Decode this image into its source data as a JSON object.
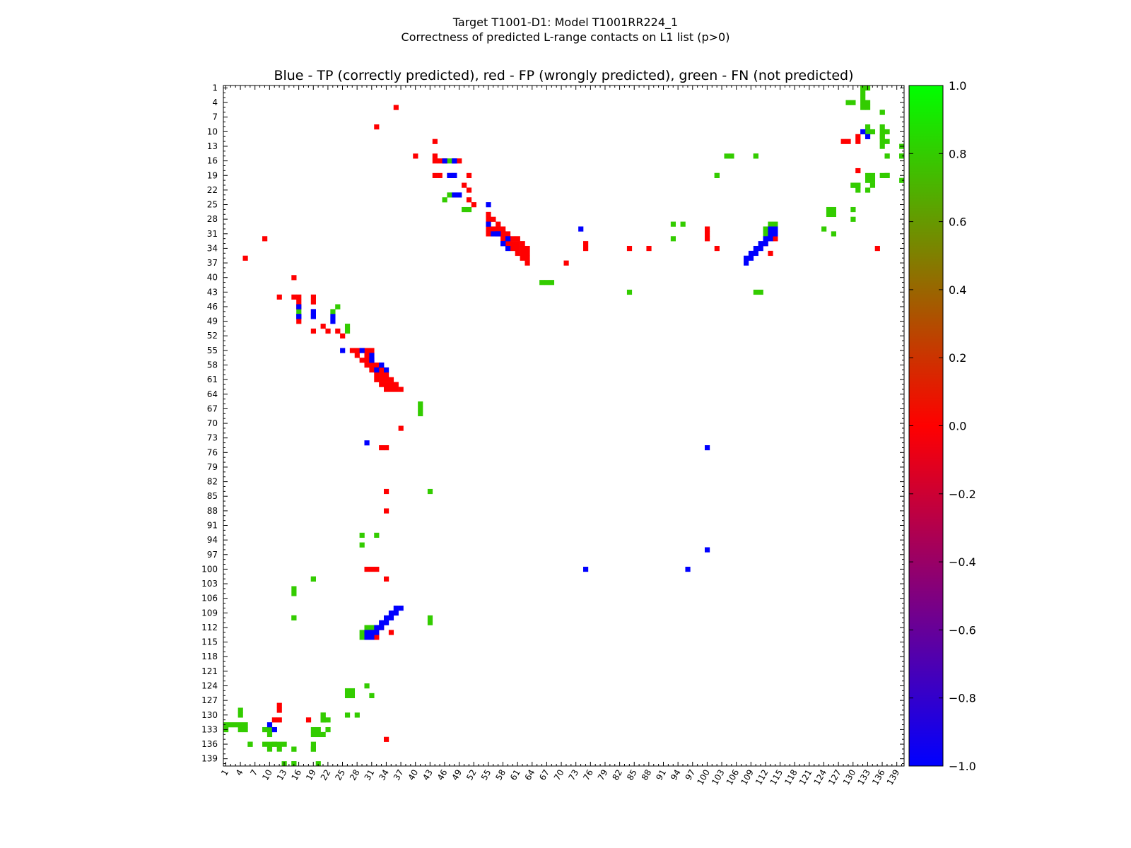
{
  "figure": {
    "title_line1": "Target T1001-D1: Model T1001RR224_1",
    "title_line2": "Correctness of predicted L-range contacts on L1 list (p>0)"
  },
  "chart_data": {
    "type": "heatmap",
    "title": "Blue - TP (correctly predicted), red - FP (wrongly predicted), green - FN (not predicted)",
    "xlabel": "",
    "ylabel": "",
    "n_residues": 140,
    "xlim": [
      0.5,
      140.5
    ],
    "ylim": [
      0.5,
      140.5
    ],
    "x_tick_labels": [
      "1",
      "4",
      "7",
      "10",
      "13",
      "16",
      "19",
      "22",
      "25",
      "28",
      "31",
      "34",
      "37",
      "40",
      "43",
      "46",
      "49",
      "52",
      "55",
      "58",
      "61",
      "64",
      "67",
      "70",
      "73",
      "76",
      "79",
      "82",
      "85",
      "88",
      "91",
      "94",
      "97",
      "100",
      "103",
      "106",
      "109",
      "112",
      "115",
      "118",
      "121",
      "124",
      "127",
      "130",
      "133",
      "136",
      "139"
    ],
    "y_tick_labels": [
      "1",
      "4",
      "7",
      "10",
      "13",
      "16",
      "19",
      "22",
      "25",
      "28",
      "31",
      "34",
      "37",
      "40",
      "43",
      "46",
      "49",
      "52",
      "55",
      "58",
      "61",
      "64",
      "67",
      "70",
      "73",
      "76",
      "79",
      "82",
      "85",
      "88",
      "91",
      "94",
      "97",
      "100",
      "103",
      "106",
      "109",
      "112",
      "115",
      "118",
      "121",
      "124",
      "127",
      "130",
      "133",
      "136",
      "139"
    ],
    "colorbar": {
      "min": -1.0,
      "max": 1.0,
      "ticks": [
        "1.0",
        "0.8",
        "0.6",
        "0.4",
        "0.2",
        "0.0",
        "−0.2",
        "−0.4",
        "−0.6",
        "−0.8",
        "−1.0"
      ],
      "colors": [
        "#0000ff",
        "#ff0000",
        "#00ff00"
      ]
    },
    "values": {
      "TP": -1,
      "FP": 0,
      "FN": 1
    },
    "colors": {
      "TP": "#0000ff",
      "FP": "#ff0000",
      "FN": "#33cc00"
    },
    "contacts_upper": {
      "TP": [
        [
          10,
          132
        ],
        [
          16,
          48
        ],
        [
          19,
          48
        ],
        [
          23,
          48
        ],
        [
          23,
          49
        ],
        [
          30,
          113
        ],
        [
          30,
          114
        ],
        [
          31,
          57
        ],
        [
          31,
          113
        ],
        [
          31,
          114
        ],
        [
          32,
          59
        ],
        [
          32,
          112
        ],
        [
          32,
          113
        ],
        [
          33,
          58
        ],
        [
          33,
          111
        ],
        [
          33,
          112
        ],
        [
          34,
          110
        ],
        [
          34,
          111
        ],
        [
          35,
          109
        ],
        [
          35,
          110
        ],
        [
          36,
          108
        ],
        [
          36,
          109
        ],
        [
          37,
          108
        ]
      ],
      "FP": [
        [
          5,
          36
        ],
        [
          9,
          32
        ],
        [
          12,
          44
        ],
        [
          15,
          40
        ],
        [
          15,
          44
        ],
        [
          16,
          44
        ],
        [
          16,
          45
        ],
        [
          16,
          46
        ],
        [
          16,
          49
        ],
        [
          19,
          44
        ],
        [
          19,
          45
        ],
        [
          19,
          47
        ],
        [
          19,
          51
        ],
        [
          21,
          50
        ],
        [
          22,
          51
        ],
        [
          24,
          51
        ],
        [
          25,
          52
        ],
        [
          27,
          55
        ],
        [
          28,
          55
        ],
        [
          28,
          56
        ],
        [
          29,
          55
        ],
        [
          29,
          57
        ],
        [
          30,
          55
        ],
        [
          30,
          56
        ],
        [
          30,
          57
        ],
        [
          30,
          58
        ],
        [
          30,
          100
        ],
        [
          31,
          55
        ],
        [
          31,
          56
        ],
        [
          31,
          57
        ],
        [
          31,
          58
        ],
        [
          31,
          59
        ],
        [
          31,
          100
        ],
        [
          31,
          113
        ],
        [
          32,
          58
        ],
        [
          32,
          59
        ],
        [
          32,
          60
        ],
        [
          32,
          61
        ],
        [
          32,
          100
        ],
        [
          32,
          114
        ],
        [
          33,
          59
        ],
        [
          33,
          60
        ],
        [
          33,
          61
        ],
        [
          33,
          62
        ],
        [
          33,
          75
        ],
        [
          33,
          112
        ],
        [
          34,
          60
        ],
        [
          34,
          61
        ],
        [
          34,
          62
        ],
        [
          34,
          63
        ],
        [
          34,
          75
        ],
        [
          34,
          84
        ],
        [
          34,
          88
        ],
        [
          34,
          102
        ],
        [
          34,
          135
        ],
        [
          35,
          61
        ],
        [
          35,
          62
        ],
        [
          35,
          63
        ],
        [
          35,
          113
        ],
        [
          36,
          62
        ],
        [
          36,
          63
        ],
        [
          37,
          63
        ],
        [
          37,
          71
        ]
      ],
      "FN": [
        [
          1,
          132
        ],
        [
          2,
          132
        ],
        [
          3,
          132
        ],
        [
          4,
          129
        ],
        [
          4,
          132
        ],
        [
          5,
          132
        ],
        [
          6,
          136
        ],
        [
          9,
          133
        ],
        [
          9,
          136
        ],
        [
          10,
          136
        ],
        [
          10,
          137
        ],
        [
          11,
          136
        ],
        [
          12,
          137
        ],
        [
          13,
          136
        ],
        [
          13,
          140
        ],
        [
          15,
          105
        ],
        [
          15,
          110
        ],
        [
          15,
          137
        ],
        [
          15,
          140
        ],
        [
          16,
          47
        ],
        [
          19,
          102
        ],
        [
          19,
          134
        ],
        [
          19,
          136
        ],
        [
          19,
          137
        ],
        [
          20,
          134
        ],
        [
          20,
          140
        ],
        [
          21,
          130
        ],
        [
          21,
          131
        ],
        [
          21,
          134
        ],
        [
          22,
          131
        ],
        [
          22,
          133
        ],
        [
          23,
          47
        ],
        [
          24,
          46
        ],
        [
          26,
          50
        ],
        [
          26,
          51
        ],
        [
          26,
          126
        ],
        [
          26,
          125
        ],
        [
          26,
          130
        ],
        [
          27,
          125
        ],
        [
          27,
          126
        ],
        [
          28,
          130
        ],
        [
          29,
          93
        ],
        [
          29,
          95
        ],
        [
          29,
          113
        ],
        [
          29,
          114
        ],
        [
          30,
          112
        ],
        [
          30,
          124
        ],
        [
          31,
          112
        ],
        [
          31,
          126
        ],
        [
          32,
          93
        ],
        [
          32,
          112
        ]
      ],
      "FN_extra": [
        [
          41,
          66
        ],
        [
          41,
          67
        ],
        [
          41,
          68
        ],
        [
          43,
          84
        ],
        [
          43,
          110
        ],
        [
          43,
          111
        ]
      ]
    },
    "contacts_lower": {
      "TP": [
        [
          11,
          133
        ],
        [
          16,
          46
        ],
        [
          16,
          48
        ],
        [
          19,
          47
        ],
        [
          19,
          48
        ],
        [
          25,
          55
        ],
        [
          29,
          55
        ],
        [
          31,
          56
        ],
        [
          31,
          57
        ],
        [
          33,
          58
        ],
        [
          34,
          59
        ],
        [
          30,
          74
        ],
        [
          100,
          75
        ],
        [
          100,
          96
        ]
      ],
      "FP": [
        [
          12,
          128
        ],
        [
          12,
          129
        ],
        [
          18,
          131
        ],
        [
          11,
          131
        ],
        [
          12,
          131
        ]
      ],
      "FN": [
        [
          1,
          133
        ],
        [
          4,
          130
        ],
        [
          4,
          133
        ],
        [
          5,
          133
        ],
        [
          6,
          136
        ],
        [
          10,
          133
        ],
        [
          10,
          134
        ],
        [
          11,
          136
        ],
        [
          12,
          136
        ],
        [
          15,
          104
        ],
        [
          15,
          110
        ],
        [
          15,
          137
        ],
        [
          15,
          140
        ],
        [
          19,
          102
        ],
        [
          19,
          133
        ],
        [
          19,
          137
        ],
        [
          20,
          133
        ],
        [
          21,
          130
        ],
        [
          21,
          131
        ]
      ]
    }
  }
}
